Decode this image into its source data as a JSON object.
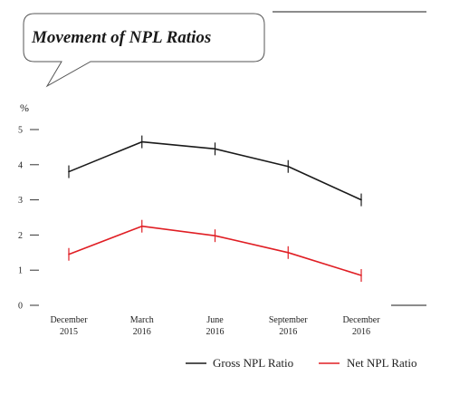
{
  "colors": {
    "gross": "#1a1a1a",
    "net": "#e01e24",
    "axis": "#333333"
  },
  "chart_data": {
    "type": "line",
    "title": "Movement of NPL Ratios",
    "ylabel": "%",
    "xlabel": "",
    "ylim": [
      0,
      5
    ],
    "yticks": [
      0,
      1,
      2,
      3,
      4,
      5
    ],
    "categories": [
      [
        "December",
        "2015"
      ],
      [
        "March",
        "2016"
      ],
      [
        "June",
        "2016"
      ],
      [
        "September",
        "2016"
      ],
      [
        "December",
        "2016"
      ]
    ],
    "series": [
      {
        "name": "Gross NPL Ratio",
        "color": "#1a1a1a",
        "values": [
          3.8,
          4.65,
          4.45,
          3.95,
          3.0
        ]
      },
      {
        "name": "Net NPL Ratio",
        "color": "#e01e24",
        "values": [
          1.45,
          2.25,
          1.98,
          1.5,
          0.85
        ]
      }
    ],
    "grid": false,
    "legend_position": "bottom-right"
  }
}
